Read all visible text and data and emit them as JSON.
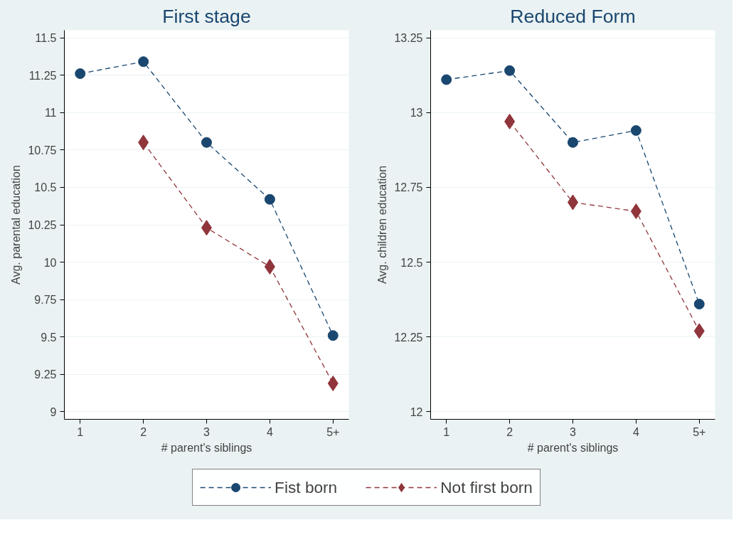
{
  "chart_data": [
    {
      "type": "line",
      "title": "First stage",
      "xlabel": "# parent's siblings",
      "ylabel": "Avg. parental education",
      "categories": [
        "1",
        "2",
        "3",
        "4",
        "5+"
      ],
      "series": [
        {
          "name": "Fist born",
          "color": "#1a476f",
          "marker": "circle",
          "values": [
            11.26,
            11.34,
            10.8,
            10.42,
            9.51
          ]
        },
        {
          "name": "Not first born",
          "color": "#90353b",
          "marker": "diamond",
          "values": [
            null,
            10.8,
            10.23,
            9.97,
            9.19
          ]
        }
      ],
      "ylim": [
        8.95,
        11.55
      ],
      "yticks": [
        9,
        9.25,
        9.5,
        9.75,
        10,
        10.25,
        10.5,
        10.75,
        11,
        11.25,
        11.5
      ],
      "grid": "y",
      "legend": "bottom",
      "line_style": "dashed"
    },
    {
      "type": "line",
      "title": "Reduced Form",
      "xlabel": "# parent's siblings",
      "ylabel": "Avg. children education",
      "categories": [
        "1",
        "2",
        "3",
        "4",
        "5+"
      ],
      "series": [
        {
          "color": "#1a476f",
          "marker": "circle",
          "values": [
            13.11,
            13.14,
            12.9,
            12.94,
            12.36
          ]
        },
        {
          "color": "#90353b",
          "marker": "diamond",
          "values": [
            null,
            12.97,
            12.7,
            12.67,
            12.27
          ]
        }
      ],
      "ylim": [
        11.975,
        13.275
      ],
      "yticks": [
        12,
        12.25,
        12.5,
        12.75,
        13,
        13.25
      ],
      "grid": "y",
      "line_style": "dashed"
    }
  ]
}
